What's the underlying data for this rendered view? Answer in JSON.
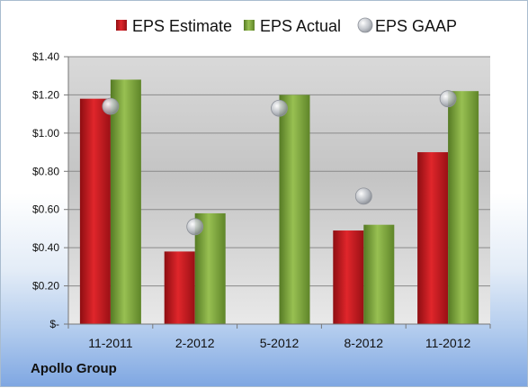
{
  "company": "Apollo Group",
  "chart_data": {
    "type": "bar",
    "title": "",
    "xlabel": "",
    "ylabel": "",
    "categories": [
      "11-2011",
      "2-2012",
      "5-2012",
      "8-2012",
      "11-2012"
    ],
    "series": [
      {
        "name": "EPS Estimate",
        "type": "bar",
        "color": "#c0141a",
        "values": [
          1.18,
          0.38,
          null,
          0.49,
          0.9
        ]
      },
      {
        "name": "EPS Actual",
        "type": "bar",
        "color": "#7aa33b",
        "values": [
          1.28,
          0.58,
          1.2,
          0.52,
          1.22
        ]
      },
      {
        "name": "EPS GAAP",
        "type": "scatter",
        "color": "#b8bcc4",
        "values": [
          1.14,
          0.51,
          1.13,
          0.67,
          1.18
        ]
      }
    ],
    "ylim": [
      0,
      1.4
    ],
    "yticks": [
      0,
      0.2,
      0.4,
      0.6,
      0.8,
      1.0,
      1.2,
      1.4
    ],
    "ytick_labels": [
      "$-",
      "$0.20",
      "$0.40",
      "$0.60",
      "$0.80",
      "$1.00",
      "$1.20",
      "$1.40"
    ],
    "grid": true,
    "legend_position": "top"
  }
}
